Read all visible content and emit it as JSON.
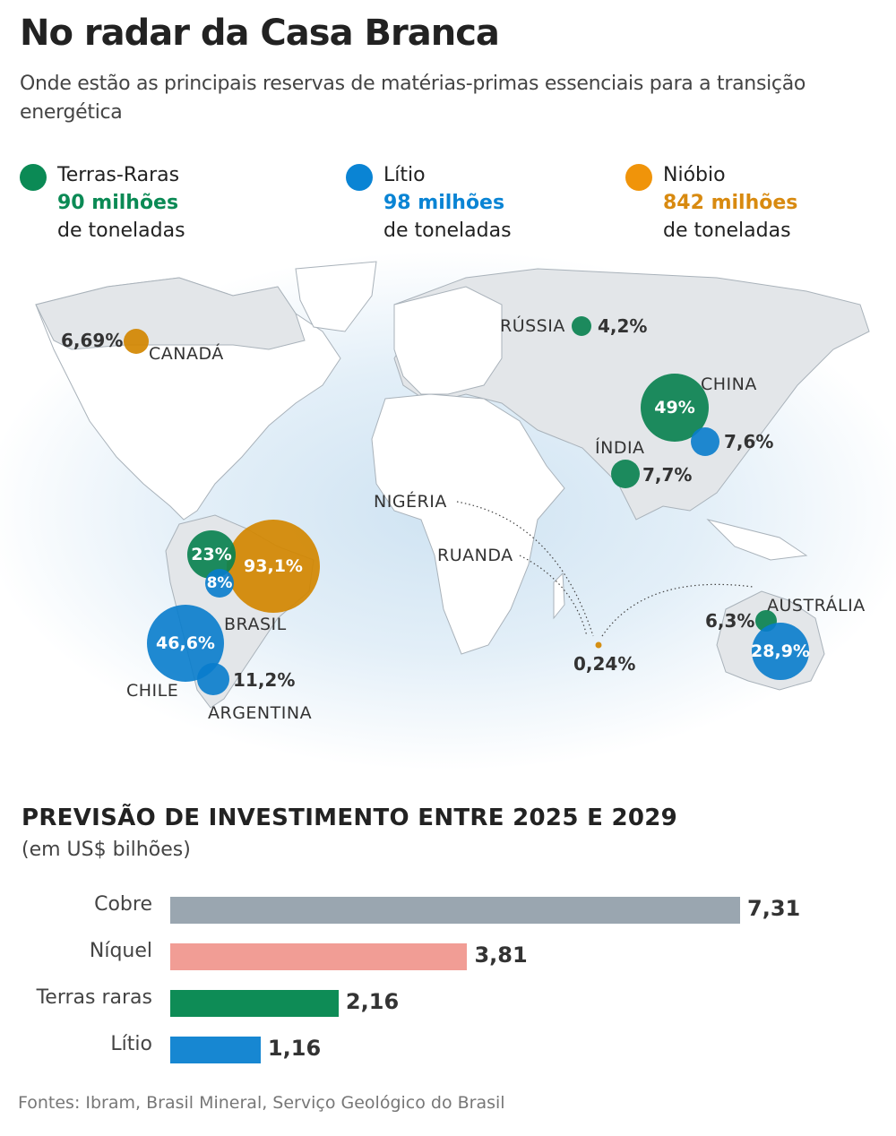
{
  "title": "No radar da Casa Branca",
  "subtitle": "Onde estão as principais reservas de matérias-primas essenciais para a transição energética",
  "legend": [
    {
      "name": "Terras-Raras",
      "amount": "90 milhões",
      "unit": "de toneladas",
      "color": "#0b8a55"
    },
    {
      "name": "Lítio",
      "amount": "98 milhões",
      "unit": "de toneladas",
      "color": "#0a84d4"
    },
    {
      "name": "Nióbio",
      "amount": "842 milhões",
      "unit": "de toneladas",
      "color": "#f0940a"
    }
  ],
  "map": {
    "countries": {
      "canada": "CANADÁ",
      "russia": "RÚSSIA",
      "china": "CHINA",
      "india": "ÍNDIA",
      "nigeria": "NIGÉRIA",
      "ruanda": "RUANDA",
      "brasil": "BRASIL",
      "chile": "CHILE",
      "argentina": "ARGENTINA",
      "australia": "AUSTRÁLIA"
    },
    "values": {
      "canada_niobio": "6,69%",
      "russia_terras": "4,2%",
      "china_terras": "49%",
      "china_litio": "7,6%",
      "india_terras": "7,7%",
      "brasil_terras": "23%",
      "brasil_niobio": "93,1%",
      "brasil_litio": "8%",
      "chile_litio": "46,6%",
      "argentina_litio": "11,2%",
      "australia_terras": "6,3%",
      "australia_litio": "28,9%",
      "outros_niobio": "0,24%"
    }
  },
  "chart_data": {
    "type": "bar",
    "orientation": "horizontal",
    "title": "PREVISÃO DE INVESTIMENTO ENTRE 2025 E 2029",
    "subtitle": "(em US$ bilhões)",
    "categories": [
      "Cobre",
      "Níquel",
      "Terras raras",
      "Lítio"
    ],
    "values": [
      7.31,
      3.81,
      2.16,
      1.16
    ],
    "labels": [
      "7,31",
      "3,81",
      "2,16",
      "1,16"
    ],
    "colors": [
      "#9aa6b0",
      "#f19d95",
      "#0e8c56",
      "#1787d2"
    ]
  },
  "source": "Fontes: Ibram, Brasil Mineral, Serviço Geológico do Brasil"
}
